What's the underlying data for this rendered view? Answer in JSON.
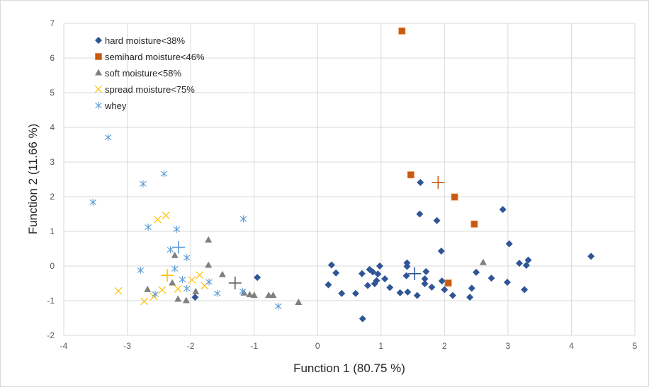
{
  "chart_data": {
    "type": "scatter",
    "xlabel": "Function 1 (80.75 %)",
    "ylabel": "Function 2 (11.66 %)",
    "xlim": [
      -4,
      5
    ],
    "ylim": [
      -2,
      7
    ],
    "xticks": [
      -4,
      -3,
      -2,
      -1,
      0,
      1,
      2,
      3,
      4,
      5
    ],
    "yticks": [
      -2,
      -1,
      0,
      1,
      2,
      3,
      4,
      5,
      6,
      7
    ],
    "grid": true,
    "legend_position": "top-left",
    "series": [
      {
        "name": "hard moisture<38%",
        "marker": "diamond",
        "color": "#2F5597",
        "points": [
          [
            1.62,
            2.41
          ],
          [
            1.61,
            1.5
          ],
          [
            1.88,
            1.31
          ],
          [
            2.92,
            1.63
          ],
          [
            1.95,
            0.43
          ],
          [
            3.02,
            0.64
          ],
          [
            4.31,
            0.28
          ],
          [
            3.18,
            0.08
          ],
          [
            3.32,
            0.17
          ],
          [
            3.29,
            0.02
          ],
          [
            2.5,
            -0.18
          ],
          [
            2.74,
            -0.35
          ],
          [
            2.99,
            -0.47
          ],
          [
            3.26,
            -0.68
          ],
          [
            2.43,
            -0.64
          ],
          [
            2.4,
            -0.9
          ],
          [
            2.13,
            -0.85
          ],
          [
            2.0,
            -0.68
          ],
          [
            1.96,
            -0.43
          ],
          [
            1.71,
            -0.16
          ],
          [
            1.69,
            -0.37
          ],
          [
            1.69,
            -0.51
          ],
          [
            1.8,
            -0.61
          ],
          [
            1.57,
            -0.85
          ],
          [
            1.42,
            -0.75
          ],
          [
            1.3,
            -0.77
          ],
          [
            1.4,
            -0.28
          ],
          [
            1.41,
            0.09
          ],
          [
            1.41,
            -0.01
          ],
          [
            1.14,
            -0.62
          ],
          [
            1.06,
            -0.37
          ],
          [
            0.98,
            0.0
          ],
          [
            0.95,
            -0.23
          ],
          [
            0.93,
            -0.42
          ],
          [
            0.9,
            -0.51
          ],
          [
            0.82,
            -0.1
          ],
          [
            0.87,
            -0.17
          ],
          [
            0.79,
            -0.56
          ],
          [
            0.7,
            -0.22
          ],
          [
            0.6,
            -0.79
          ],
          [
            0.38,
            -0.79
          ],
          [
            0.29,
            -0.2
          ],
          [
            0.22,
            0.03
          ],
          [
            0.17,
            -0.54
          ],
          [
            0.71,
            -1.52
          ],
          [
            -0.95,
            -0.33
          ],
          [
            -1.93,
            -0.9
          ]
        ],
        "centroid": [
          1.53,
          -0.22
        ]
      },
      {
        "name": "semihard moisture<46%",
        "marker": "square",
        "color": "#C55A11",
        "points": [
          [
            1.33,
            6.78
          ],
          [
            1.47,
            2.63
          ],
          [
            2.16,
            1.99
          ],
          [
            2.47,
            1.21
          ],
          [
            2.06,
            -0.49
          ]
        ],
        "centroid": [
          1.9,
          2.41
        ]
      },
      {
        "name": "soft moisture<58%",
        "marker": "triangle",
        "color": "#808080",
        "points": [
          [
            -1.72,
            0.75
          ],
          [
            -2.25,
            0.3
          ],
          [
            -1.72,
            0.02
          ],
          [
            -1.5,
            -0.25
          ],
          [
            -2.29,
            -0.49
          ],
          [
            -2.68,
            -0.68
          ],
          [
            -1.92,
            -0.74
          ],
          [
            -2.2,
            -0.96
          ],
          [
            -2.07,
            -1.0
          ],
          [
            -1.16,
            -0.78
          ],
          [
            -1.07,
            -0.83
          ],
          [
            -1.0,
            -0.85
          ],
          [
            -0.77,
            -0.85
          ],
          [
            -0.7,
            -0.85
          ],
          [
            -0.3,
            -1.05
          ],
          [
            2.61,
            0.1
          ]
        ],
        "centroid": [
          -1.3,
          -0.49
        ]
      },
      {
        "name": "spread moisture<75%",
        "marker": "x",
        "color": "#FFC000",
        "points": [
          [
            -2.39,
            1.46
          ],
          [
            -2.52,
            1.34
          ],
          [
            -3.14,
            -0.72
          ],
          [
            -2.73,
            -1.02
          ],
          [
            -2.58,
            -0.88
          ],
          [
            -2.45,
            -0.69
          ],
          [
            -2.2,
            -0.66
          ],
          [
            -1.98,
            -0.4
          ],
          [
            -1.86,
            -0.26
          ],
          [
            -1.78,
            -0.57
          ]
        ],
        "centroid": [
          -2.37,
          -0.27
        ]
      },
      {
        "name": "whey",
        "marker": "asterisk",
        "color": "#5B9BD5",
        "points": [
          [
            -3.3,
            3.71
          ],
          [
            -2.42,
            2.66
          ],
          [
            -2.75,
            2.37
          ],
          [
            -3.54,
            1.84
          ],
          [
            -2.67,
            1.12
          ],
          [
            -2.22,
            1.06
          ],
          [
            -1.17,
            1.36
          ],
          [
            -2.32,
            0.47
          ],
          [
            -2.06,
            0.24
          ],
          [
            -2.79,
            -0.12
          ],
          [
            -2.25,
            -0.08
          ],
          [
            -2.13,
            -0.39
          ],
          [
            -1.71,
            -0.46
          ],
          [
            -2.06,
            -0.65
          ],
          [
            -2.56,
            -0.81
          ],
          [
            -1.58,
            -0.79
          ],
          [
            -1.18,
            -0.73
          ],
          [
            -0.62,
            -1.16
          ]
        ],
        "centroid": [
          -2.19,
          0.54
        ]
      }
    ]
  }
}
